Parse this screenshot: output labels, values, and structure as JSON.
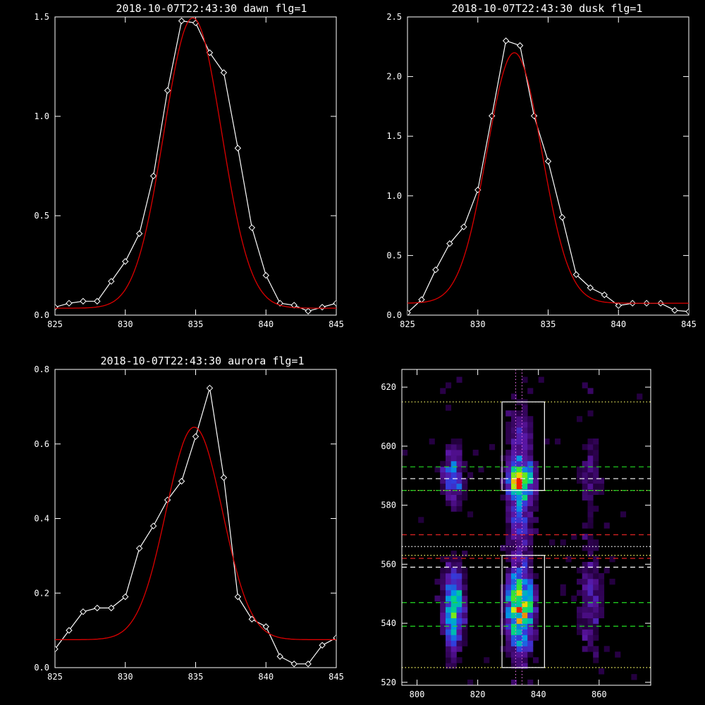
{
  "colors": {
    "background": "#000000",
    "axis": "#ffffff",
    "data": "#ffffff",
    "fit": "#dd0000",
    "box": "#ffffff",
    "dashed_white": "#ffffff",
    "dashed_green": "#22dd22",
    "dashed_red": "#dd2222",
    "dotted": "#ffff66",
    "dotted_v": "#dd66dd"
  },
  "chart_data": [
    {
      "type": "line",
      "title": "2018-10-07T22:43:30 dawn flg=1",
      "xlim": [
        825,
        845
      ],
      "ylim": [
        0,
        1.5
      ],
      "xticks": [
        "825",
        "830",
        "835",
        "840",
        "845"
      ],
      "yticks": [
        "0.0",
        "0.5",
        "1.0",
        "1.5"
      ],
      "xtick_values": [
        825,
        830,
        835,
        840,
        845
      ],
      "ytick_values": [
        0,
        0.5,
        1.0,
        1.5
      ],
      "series": [
        {
          "kind": "data",
          "x": [
            825,
            826,
            827,
            828,
            829,
            830,
            831,
            832,
            833,
            834,
            835,
            836,
            837,
            838,
            839,
            840,
            841,
            842,
            843,
            844,
            845
          ],
          "y": [
            0.04,
            0.06,
            0.07,
            0.07,
            0.17,
            0.27,
            0.41,
            0.7,
            1.13,
            1.48,
            1.47,
            1.32,
            1.22,
            0.84,
            0.44,
            0.2,
            0.06,
            0.05,
            0.02,
            0.04,
            0.06
          ]
        },
        {
          "kind": "fit",
          "amp": 1.46,
          "mu": 834.8,
          "sigma": 2.05,
          "base": 0.035
        }
      ]
    },
    {
      "type": "line",
      "title": "2018-10-07T22:43:30 dusk flg=1",
      "xlim": [
        825,
        845
      ],
      "ylim": [
        0,
        2.5
      ],
      "xticks": [
        "825",
        "830",
        "835",
        "840",
        "845"
      ],
      "yticks": [
        "0.0",
        "0.5",
        "1.0",
        "1.5",
        "2.0",
        "2.5"
      ],
      "xtick_values": [
        825,
        830,
        835,
        840,
        845
      ],
      "ytick_values": [
        0,
        0.5,
        1.0,
        1.5,
        2.0,
        2.5
      ],
      "series": [
        {
          "kind": "data",
          "x": [
            825,
            826,
            827,
            828,
            829,
            830,
            831,
            832,
            833,
            834,
            835,
            836,
            837,
            838,
            839,
            840,
            841,
            842,
            843,
            844,
            845
          ],
          "y": [
            0.02,
            0.13,
            0.38,
            0.6,
            0.74,
            1.05,
            1.67,
            2.3,
            2.26,
            1.67,
            1.29,
            0.82,
            0.34,
            0.23,
            0.17,
            0.08,
            0.1,
            0.1,
            0.1,
            0.04,
            0.03
          ]
        },
        {
          "kind": "fit",
          "amp": 2.1,
          "mu": 832.6,
          "sigma": 1.95,
          "base": 0.1
        }
      ]
    },
    {
      "type": "line",
      "title": "2018-10-07T22:43:30 aurora flg=1",
      "xlim": [
        825,
        845
      ],
      "ylim": [
        0,
        0.8
      ],
      "xticks": [
        "825",
        "830",
        "835",
        "840",
        "845"
      ],
      "yticks": [
        "0.0",
        "0.2",
        "0.4",
        "0.6",
        "0.8"
      ],
      "xtick_values": [
        825,
        830,
        835,
        840,
        845
      ],
      "ytick_values": [
        0,
        0.2,
        0.4,
        0.6,
        0.8
      ],
      "series": [
        {
          "kind": "data",
          "x": [
            825,
            826,
            827,
            828,
            829,
            830,
            831,
            832,
            833,
            834,
            835,
            836,
            837,
            838,
            839,
            840,
            841,
            842,
            843,
            844,
            845
          ],
          "y": [
            0.05,
            0.1,
            0.15,
            0.16,
            0.16,
            0.19,
            0.32,
            0.38,
            0.45,
            0.5,
            0.62,
            0.75,
            0.51,
            0.19,
            0.13,
            0.11,
            0.03,
            0.01,
            0.01,
            0.06,
            0.08
          ]
        },
        {
          "kind": "fit",
          "amp": 0.57,
          "mu": 834.9,
          "sigma": 2.0,
          "base": 0.075
        }
      ]
    },
    {
      "type": "heatmap",
      "title": "",
      "xlim": [
        795,
        877
      ],
      "ylim": [
        519,
        626
      ],
      "xticks": [
        "800",
        "820",
        "840",
        "860"
      ],
      "yticks": [
        "520",
        "540",
        "560",
        "580",
        "600",
        "620"
      ],
      "xtick_values": [
        800,
        820,
        840,
        860
      ],
      "ytick_values": [
        520,
        540,
        560,
        580,
        600,
        620
      ],
      "boxes": [
        {
          "x": [
            828,
            842
          ],
          "y": [
            585,
            615
          ]
        },
        {
          "x": [
            828,
            842
          ],
          "y": [
            525,
            563
          ]
        }
      ],
      "vlines": [
        {
          "x": 832.5,
          "style": "dotted"
        },
        {
          "x": 834.6,
          "style": "dotted"
        }
      ],
      "hlines": [
        {
          "y": 615,
          "style": "dotted",
          "color": "dotted"
        },
        {
          "y": 585,
          "style": "dotted",
          "color": "dotted"
        },
        {
          "y": 525,
          "style": "dotted",
          "color": "dotted"
        },
        {
          "y": 563,
          "style": "dotted",
          "color": "dotted"
        },
        {
          "y": 566,
          "style": "dotted",
          "color": "dotted_red"
        },
        {
          "y": 593,
          "style": "dashed",
          "color": "dashed_green"
        },
        {
          "y": 585,
          "style": "dashed",
          "color": "dashed_green"
        },
        {
          "y": 547,
          "style": "dashed",
          "color": "dashed_green"
        },
        {
          "y": 539,
          "style": "dashed",
          "color": "dashed_green"
        },
        {
          "y": 589,
          "style": "dashed",
          "color": "dashed_white"
        },
        {
          "y": 559,
          "style": "dashed",
          "color": "dashed_white"
        },
        {
          "y": 570,
          "style": "dashed",
          "color": "dashed_red"
        },
        {
          "y": 562,
          "style": "dashed",
          "color": "dashed_red"
        }
      ],
      "emission_bands": [
        {
          "x": 834,
          "width": 3.0,
          "peaks": [
            {
              "y": 589,
              "w": 5,
              "i": 0.9
            },
            {
              "y": 545,
              "w": 9,
              "i": 1.0
            },
            {
              "y": 575,
              "w": 8,
              "i": 0.35
            },
            {
              "y": 605,
              "w": 6,
              "i": 0.25
            }
          ]
        },
        {
          "x": 812,
          "width": 2.4,
          "peaks": [
            {
              "y": 545,
              "w": 9,
              "i": 0.65
            },
            {
              "y": 590,
              "w": 6,
              "i": 0.45
            }
          ]
        },
        {
          "x": 857,
          "width": 3.0,
          "peaks": [
            {
              "y": 548,
              "w": 12,
              "i": 0.22
            },
            {
              "y": 590,
              "w": 8,
              "i": 0.18
            }
          ]
        }
      ]
    }
  ]
}
